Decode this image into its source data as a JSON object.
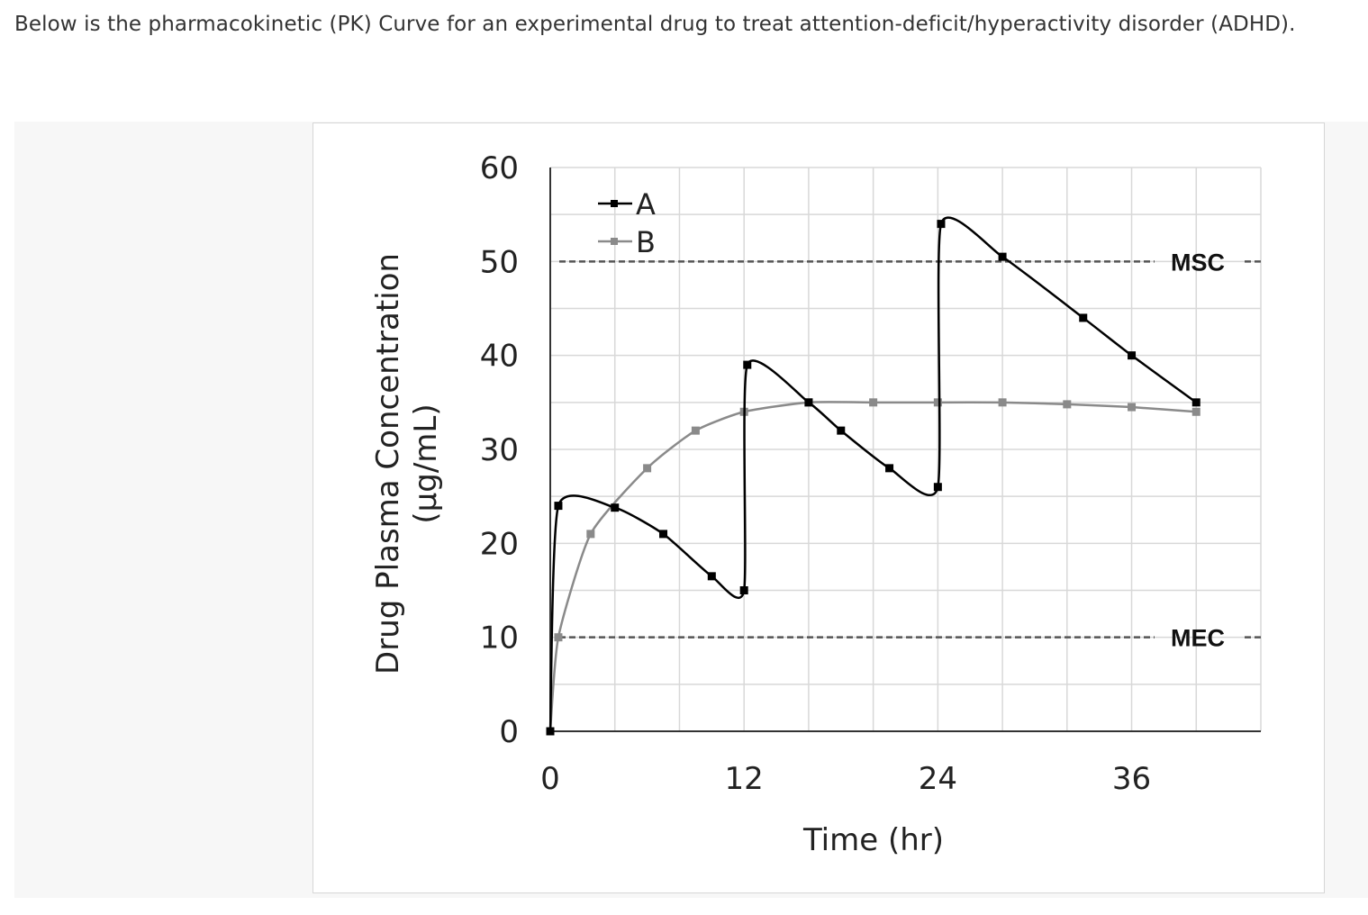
{
  "intro_text": "Below is the pharmacokinetic (PK) Curve for an experimental drug to treat attention-deficit/hyperactivity disorder (ADHD).",
  "chart_data": {
    "type": "line",
    "xlabel": "Time (hr)",
    "ylabel_line1": "Drug Plasma Concentration",
    "ylabel_line2": "(µg/mL)",
    "xlim": [
      0,
      44
    ],
    "ylim": [
      0,
      60
    ],
    "x_ticks": [
      0,
      12,
      24,
      36
    ],
    "y_ticks": [
      0,
      10,
      20,
      30,
      40,
      50,
      60
    ],
    "grid": true,
    "legend_position": "top-left",
    "reference_lines": [
      {
        "name": "MSC",
        "value": 50
      },
      {
        "name": "MEC",
        "value": 10
      }
    ],
    "series": [
      {
        "name": "A",
        "color": "#000000",
        "points": [
          [
            0,
            0
          ],
          [
            0.5,
            24
          ],
          [
            4,
            23.8
          ],
          [
            7,
            21
          ],
          [
            10,
            16.5
          ],
          [
            12,
            15
          ],
          [
            12.2,
            39
          ],
          [
            16,
            35
          ],
          [
            18,
            32
          ],
          [
            21,
            28
          ],
          [
            24,
            26
          ],
          [
            24.2,
            54
          ],
          [
            28,
            50.5
          ],
          [
            33,
            44
          ],
          [
            36,
            40
          ],
          [
            40,
            35
          ]
        ]
      },
      {
        "name": "B",
        "color": "#8a8a8a",
        "points": [
          [
            0,
            0
          ],
          [
            0.5,
            10
          ],
          [
            2.5,
            21
          ],
          [
            6,
            28
          ],
          [
            9,
            32
          ],
          [
            12,
            34
          ],
          [
            16,
            35
          ],
          [
            20,
            35
          ],
          [
            24,
            35
          ],
          [
            28,
            35
          ],
          [
            32,
            34.8
          ],
          [
            36,
            34.5
          ],
          [
            40,
            34
          ]
        ]
      }
    ]
  }
}
